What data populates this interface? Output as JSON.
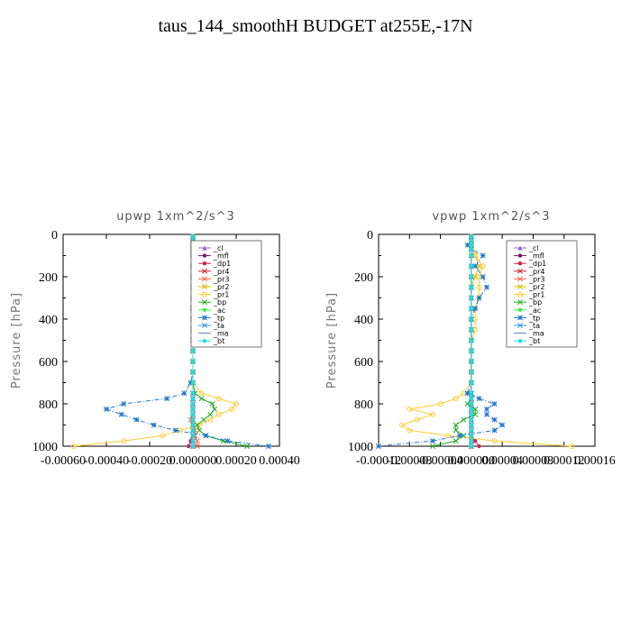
{
  "title": "taus_144_smoothH  BUDGET at255E,-17N",
  "legend_entries": [
    "_cl",
    "_mfl",
    "_dp1",
    "_pr4",
    "_pr3",
    "_pr2",
    "_pr1",
    "_bp",
    "_ac",
    "_tp",
    "_ta",
    "_ma",
    "_bt"
  ],
  "series_styles": [
    {
      "name": "_cl",
      "color": "#9966cc",
      "marker": "tri"
    },
    {
      "name": "_mfl",
      "color": "#7a1a6e",
      "marker": "dot"
    },
    {
      "name": "_dp1",
      "color": "#cc2255",
      "marker": "dot"
    },
    {
      "name": "_pr4",
      "color": "#cc2233",
      "marker": "x"
    },
    {
      "name": "_pr3",
      "color": "#ff6644",
      "marker": "x"
    },
    {
      "name": "_pr2",
      "color": "#ddbb00",
      "marker": "x"
    },
    {
      "name": "_pr1",
      "color": "#ffcc33",
      "marker": "ring"
    },
    {
      "name": "_bp",
      "color": "#22aa22",
      "marker": "x"
    },
    {
      "name": "_ac",
      "color": "#44ee44",
      "marker": "dot"
    },
    {
      "name": "_tp",
      "color": "#2277cc",
      "marker": "star"
    },
    {
      "name": "_ta",
      "color": "#3399dd",
      "marker": "x"
    },
    {
      "name": "_ma",
      "color": "#6688bb",
      "marker": "dash"
    },
    {
      "name": "_bt",
      "color": "#22dddd",
      "marker": "dot"
    }
  ],
  "chart_data": [
    {
      "type": "line",
      "title": "upwp   1xm^2/s^3",
      "xlabel": "",
      "ylabel": "Pressure [hPa]",
      "xlim": [
        -0.0006,
        0.0004
      ],
      "ylim": [
        1000,
        0
      ],
      "x_ticks": [
        -0.0006,
        -0.0004,
        -0.0002,
        0.0,
        0.0002,
        0.0004
      ],
      "x_tick_labels": [
        "-0.00060",
        "-0.00040",
        "-0.00020",
        "0.000000",
        "0.00020",
        "0.00040"
      ],
      "y_ticks": [
        0,
        200,
        400,
        600,
        800,
        1000
      ],
      "y_tick_labels": [
        "0",
        "200",
        "400",
        "600",
        "800",
        "1000"
      ],
      "pressure": [
        1000,
        975,
        950,
        925,
        900,
        875,
        850,
        825,
        800,
        775,
        750,
        700,
        650,
        600,
        550,
        500,
        450,
        400,
        350,
        300,
        250,
        200,
        150,
        100,
        70,
        50,
        30,
        10
      ],
      "series": [
        {
          "name": "_cl",
          "values": [
            0,
            0,
            0,
            0,
            0,
            0,
            0,
            0,
            0,
            0,
            0,
            0,
            0,
            0,
            0,
            0,
            0,
            0,
            0,
            0,
            0,
            0,
            0,
            0,
            0,
            0,
            0,
            0
          ]
        },
        {
          "name": "_mfl",
          "values": [
            0,
            0,
            0,
            0,
            0,
            0,
            0,
            0,
            0,
            0,
            0,
            0,
            0,
            0,
            0,
            0,
            0,
            0,
            0,
            0,
            0,
            0,
            0,
            0,
            0,
            0,
            0,
            0
          ]
        },
        {
          "name": "_dp1",
          "values": [
            -2e-05,
            -1e-05,
            0,
            0,
            0,
            0,
            0,
            0,
            0,
            0,
            0,
            0,
            0,
            0,
            0,
            0,
            0,
            0,
            0,
            0,
            0,
            0,
            0,
            0,
            0,
            0,
            0,
            0
          ]
        },
        {
          "name": "_pr4",
          "values": [
            0,
            0,
            0,
            0,
            0,
            0,
            0,
            0,
            0,
            0,
            0,
            0,
            0,
            0,
            0,
            0,
            0,
            0,
            0,
            0,
            0,
            0,
            0,
            0,
            0,
            0,
            0,
            0
          ]
        },
        {
          "name": "_pr3",
          "values": [
            2e-05,
            2e-05,
            1e-05,
            1e-05,
            0,
            -1e-05,
            0,
            0,
            0,
            0,
            0,
            0,
            0,
            0,
            0,
            0,
            0,
            0,
            0,
            0,
            0,
            0,
            0,
            0,
            0,
            0,
            0,
            0
          ]
        },
        {
          "name": "_pr2",
          "values": [
            0,
            0,
            0,
            0,
            0,
            0,
            0,
            0,
            0,
            0,
            0,
            0,
            0,
            0,
            0,
            0,
            0,
            0,
            0,
            0,
            0,
            0,
            0,
            0,
            0,
            0,
            0,
            0
          ]
        },
        {
          "name": "_pr1",
          "values": [
            -0.00055,
            -0.00032,
            -0.00014,
            -6e-05,
            3e-05,
            8e-05,
            0.00012,
            0.00018,
            0.0002,
            0.00012,
            4e-05,
            0,
            0,
            0,
            0,
            0,
            0,
            0,
            0,
            0,
            0,
            0,
            0,
            0,
            0,
            0,
            0,
            0
          ]
        },
        {
          "name": "_bp",
          "values": [
            0.00025,
            0.00014,
            6e-05,
            3e-05,
            2e-05,
            5e-05,
            8e-05,
            0.0001,
            9e-05,
            4e-05,
            1e-05,
            0,
            0,
            0,
            0,
            0,
            0,
            0,
            0,
            0,
            0,
            0,
            0,
            0,
            0,
            0,
            0,
            0
          ]
        },
        {
          "name": "_ac",
          "values": [
            0,
            0,
            0,
            0,
            0,
            0,
            0,
            0,
            0,
            0,
            0,
            0,
            0,
            0,
            0,
            0,
            0,
            0,
            0,
            0,
            0,
            0,
            0,
            0,
            0,
            0,
            0,
            0
          ]
        },
        {
          "name": "_tp",
          "values": [
            0.00035,
            0.00016,
            6e-05,
            -8e-05,
            -0.00018,
            -0.00026,
            -0.00033,
            -0.0004,
            -0.00032,
            -0.00012,
            -4e-05,
            -1e-05,
            0,
            0,
            0,
            0,
            0,
            0,
            0,
            0,
            0,
            0,
            0,
            0,
            0,
            0,
            0,
            0
          ]
        },
        {
          "name": "_ta",
          "values": [
            0,
            0,
            0,
            0,
            0,
            0,
            0,
            0,
            0,
            0,
            0,
            0,
            0,
            0,
            0,
            0,
            0,
            0,
            0,
            0,
            0,
            0,
            0,
            0,
            0,
            0,
            0,
            0
          ]
        },
        {
          "name": "_ma",
          "values": [
            0,
            0,
            0,
            0,
            0,
            0,
            0,
            0,
            0,
            0,
            0,
            0,
            0,
            0,
            0,
            0,
            0,
            0,
            0,
            0,
            0,
            0,
            0,
            0,
            0,
            0,
            0,
            0
          ]
        },
        {
          "name": "_bt",
          "values": [
            0,
            0,
            0,
            0,
            0,
            0,
            0,
            0,
            0,
            0,
            0,
            0,
            0,
            0,
            0,
            0,
            0,
            0,
            0,
            0,
            0,
            0,
            0,
            0,
            0,
            0,
            0,
            0
          ]
        }
      ]
    },
    {
      "type": "line",
      "title": "vpwp   1xm^2/s^3",
      "xlabel": "",
      "ylabel": "Pressure [hPa]",
      "xlim": [
        -0.00012,
        0.00016
      ],
      "ylim": [
        1000,
        0
      ],
      "x_ticks": [
        -0.00012,
        -8e-05,
        -4e-05,
        0.0,
        4e-05,
        8e-05,
        0.00012,
        0.00016
      ],
      "x_tick_labels": [
        "-0.00012",
        "-0.00008",
        "-0.00004",
        "0.000000",
        "0.00004",
        "0.00008",
        "0.00012",
        "0.00016"
      ],
      "y_ticks": [
        0,
        200,
        400,
        600,
        800,
        1000
      ],
      "y_tick_labels": [
        "0",
        "200",
        "400",
        "600",
        "800",
        "1000"
      ],
      "pressure": [
        1000,
        975,
        950,
        925,
        900,
        875,
        850,
        825,
        800,
        775,
        750,
        700,
        650,
        600,
        550,
        500,
        450,
        400,
        350,
        300,
        250,
        200,
        150,
        100,
        70,
        50,
        30,
        10
      ],
      "series": [
        {
          "name": "_cl",
          "values": [
            0,
            0,
            0,
            0,
            0,
            0,
            0,
            0,
            0,
            0,
            0,
            0,
            0,
            0,
            0,
            0,
            0,
            0,
            0,
            0,
            0,
            0,
            0,
            0,
            0,
            0,
            0,
            0
          ]
        },
        {
          "name": "_mfl",
          "values": [
            0,
            0,
            0,
            0,
            0,
            0,
            0,
            0,
            0,
            0,
            0,
            0,
            0,
            0,
            0,
            0,
            0,
            0,
            0,
            0,
            0,
            0,
            0,
            0,
            0,
            0,
            0,
            0
          ]
        },
        {
          "name": "_dp1",
          "values": [
            1e-05,
            5e-06,
            0,
            0,
            0,
            0,
            0,
            0,
            0,
            0,
            0,
            0,
            0,
            0,
            0,
            0,
            0,
            0,
            0,
            0,
            0,
            0,
            0,
            0,
            0,
            0,
            0,
            0
          ]
        },
        {
          "name": "_pr4",
          "values": [
            0,
            0,
            0,
            0,
            0,
            0,
            0,
            0,
            0,
            0,
            0,
            0,
            0,
            0,
            0,
            0,
            0,
            0,
            0,
            0,
            0,
            0,
            0,
            0,
            0,
            0,
            0,
            0
          ]
        },
        {
          "name": "_pr3",
          "values": [
            0,
            0,
            0,
            0,
            0,
            0,
            0,
            0,
            0,
            0,
            0,
            0,
            0,
            0,
            0,
            0,
            0,
            0,
            0,
            0,
            0,
            0,
            0,
            0,
            0,
            0,
            0,
            0
          ]
        },
        {
          "name": "_pr2",
          "values": [
            0,
            0,
            0,
            0,
            0,
            0,
            0,
            0,
            0,
            0,
            0,
            0,
            0,
            0,
            0,
            0,
            0,
            0,
            0,
            0,
            0,
            5e-06,
            1e-05,
            5e-06,
            0,
            0,
            0,
            0
          ]
        },
        {
          "name": "_pr1",
          "values": [
            0.00013,
            3e-05,
            -3e-05,
            -8e-05,
            -9e-05,
            -7e-05,
            -5e-05,
            -8e-05,
            -4e-05,
            -2e-05,
            -1e-05,
            0,
            0,
            0,
            0,
            0,
            5e-06,
            5e-06,
            5e-06,
            1e-05,
            1e-05,
            1e-05,
            1.5e-05,
            5e-06,
            0,
            0,
            0,
            0
          ]
        },
        {
          "name": "_bp",
          "values": [
            -5e-05,
            -2e-05,
            -1e-05,
            -2e-05,
            -2e-05,
            -1e-05,
            5e-06,
            5e-06,
            -5e-06,
            0,
            0,
            0,
            0,
            0,
            0,
            0,
            0,
            0,
            0,
            0,
            0,
            0,
            0,
            0,
            0,
            0,
            0,
            0
          ]
        },
        {
          "name": "_ac",
          "values": [
            0,
            0,
            0,
            0,
            0,
            0,
            0,
            0,
            0,
            0,
            0,
            0,
            0,
            0,
            0,
            0,
            0,
            0,
            0,
            0,
            0,
            0,
            0,
            0,
            0,
            0,
            0,
            0
          ]
        },
        {
          "name": "_tp",
          "values": [
            -0.00012,
            -5e-05,
            -1.5e-05,
            3e-05,
            4e-05,
            3e-05,
            2e-05,
            2e-05,
            3e-05,
            1e-05,
            -5e-06,
            0,
            0,
            0,
            0,
            0,
            0,
            0,
            5e-06,
            1e-05,
            2e-05,
            1.5e-05,
            5e-06,
            1.5e-05,
            0,
            -5e-06,
            0,
            0
          ]
        },
        {
          "name": "_ta",
          "values": [
            0,
            0,
            0,
            0,
            0,
            0,
            0,
            0,
            0,
            0,
            0,
            0,
            0,
            0,
            0,
            0,
            0,
            0,
            0,
            0,
            0,
            0,
            0,
            0,
            0,
            0,
            0,
            0
          ]
        },
        {
          "name": "_ma",
          "values": [
            0,
            0,
            0,
            0,
            0,
            0,
            0,
            0,
            0,
            0,
            0,
            0,
            0,
            0,
            0,
            0,
            0,
            0,
            0,
            0,
            0,
            0,
            0,
            0,
            0,
            0,
            0,
            0
          ]
        },
        {
          "name": "_bt",
          "values": [
            0,
            0,
            0,
            0,
            0,
            0,
            0,
            0,
            0,
            0,
            0,
            0,
            0,
            0,
            0,
            0,
            0,
            0,
            0,
            0,
            0,
            0,
            0,
            0,
            0,
            0,
            0,
            0
          ]
        }
      ]
    }
  ]
}
